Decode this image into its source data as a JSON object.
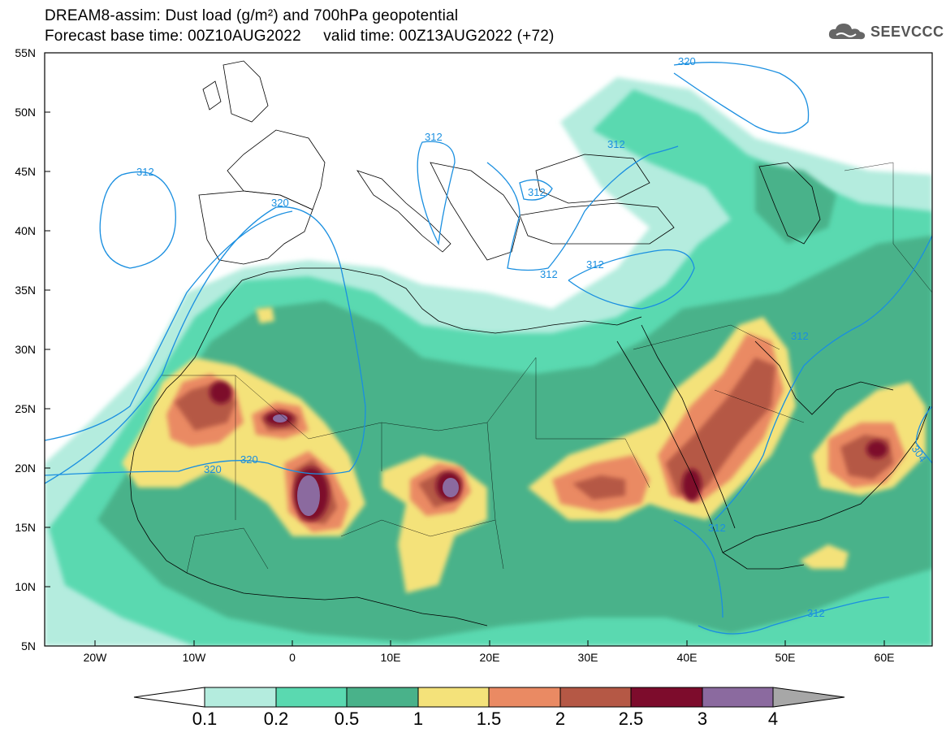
{
  "header": {
    "title_line1": "DREAM8-assim: Dust load (g/m²) and 700hPa geopotential",
    "title_line2": "Forecast base time: 00Z10AUG2022     valid time: 00Z13AUG2022 (+72)",
    "logo_text": "SEEVCCC",
    "logo_icon": "cloud-icon"
  },
  "axes": {
    "lat_labels": [
      "55N",
      "50N",
      "45N",
      "40N",
      "35N",
      "30N",
      "25N",
      "20N",
      "15N",
      "10N",
      "5N"
    ],
    "lon_labels": [
      "20W",
      "10W",
      "0",
      "10E",
      "20E",
      "30E",
      "40E",
      "50E",
      "60E"
    ]
  },
  "contour_labels": [
    "320",
    "312",
    "312",
    "312",
    "312",
    "320",
    "320",
    "320",
    "312",
    "312",
    "312",
    "312",
    "304"
  ],
  "colorbar": {
    "ticks": [
      "0.1",
      "0.2",
      "0.5",
      "1",
      "1.5",
      "2",
      "2.5",
      "3",
      "4"
    ],
    "colors": [
      "#b4ecde",
      "#5ad9b0",
      "#49b28a",
      "#f4e27a",
      "#ea8a63",
      "#b55845",
      "#7d0c2c",
      "#8b6a9f",
      "#a7a7a7"
    ]
  },
  "colors": {
    "contour": "#1a8fe0",
    "land_outline": "#000000"
  }
}
